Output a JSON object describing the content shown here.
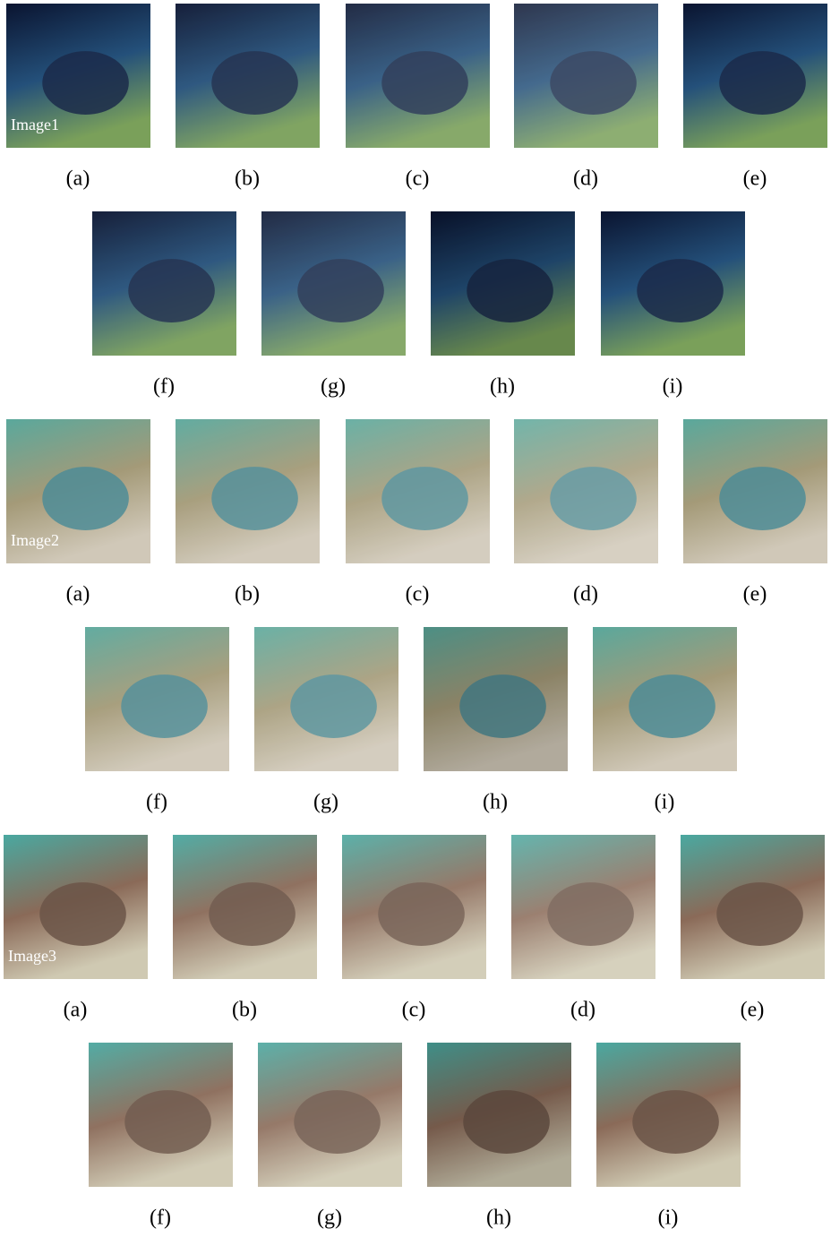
{
  "groups": [
    {
      "image_label": "Image1",
      "rows": [
        [
          "(a)",
          "(b)",
          "(c)",
          "(d)",
          "(e)"
        ],
        [
          "(f)",
          "(g)",
          "(h)",
          "(i)"
        ]
      ]
    },
    {
      "image_label": "Image2",
      "rows": [
        [
          "(a)",
          "(b)",
          "(c)",
          "(d)",
          "(e)"
        ],
        [
          "(f)",
          "(g)",
          "(h)",
          "(i)"
        ]
      ]
    },
    {
      "image_label": "Image3",
      "rows": [
        [
          "(a)",
          "(b)",
          "(c)",
          "(d)",
          "(e)"
        ],
        [
          "(f)",
          "(g)",
          "(h)",
          "(i)"
        ]
      ]
    }
  ]
}
